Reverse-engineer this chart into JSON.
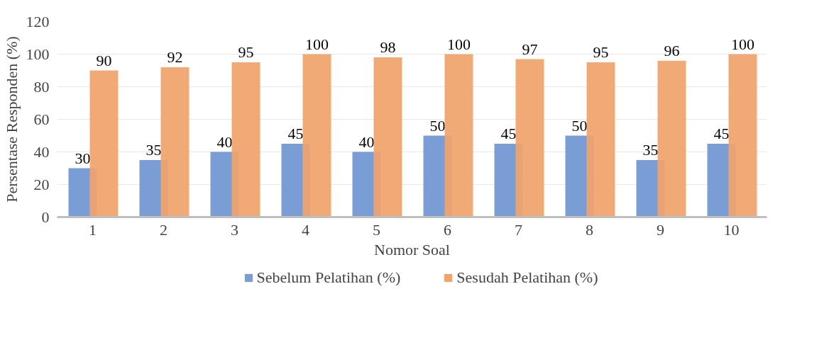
{
  "chart_data": {
    "type": "bar",
    "xlabel": "Nomor Soal",
    "ylabel": "Persentase Responden (%)",
    "categories": [
      "1",
      "2",
      "3",
      "4",
      "5",
      "6",
      "7",
      "8",
      "9",
      "10"
    ],
    "series": [
      {
        "name": "Sebelum Pelatihan (%)",
        "color": "#7b9dd6",
        "values": [
          30,
          35,
          40,
          45,
          40,
          50,
          45,
          50,
          35,
          45
        ]
      },
      {
        "name": "Sesudah Pelatihan (%)",
        "color": "#f0a36c",
        "values": [
          90,
          92,
          95,
          100,
          98,
          100,
          97,
          95,
          96,
          100
        ]
      }
    ],
    "ylim": [
      0,
      120
    ],
    "yticks": [
      0,
      20,
      40,
      60,
      80,
      100,
      120
    ],
    "grid": "y",
    "legend": "bottom",
    "data_labels": true
  }
}
